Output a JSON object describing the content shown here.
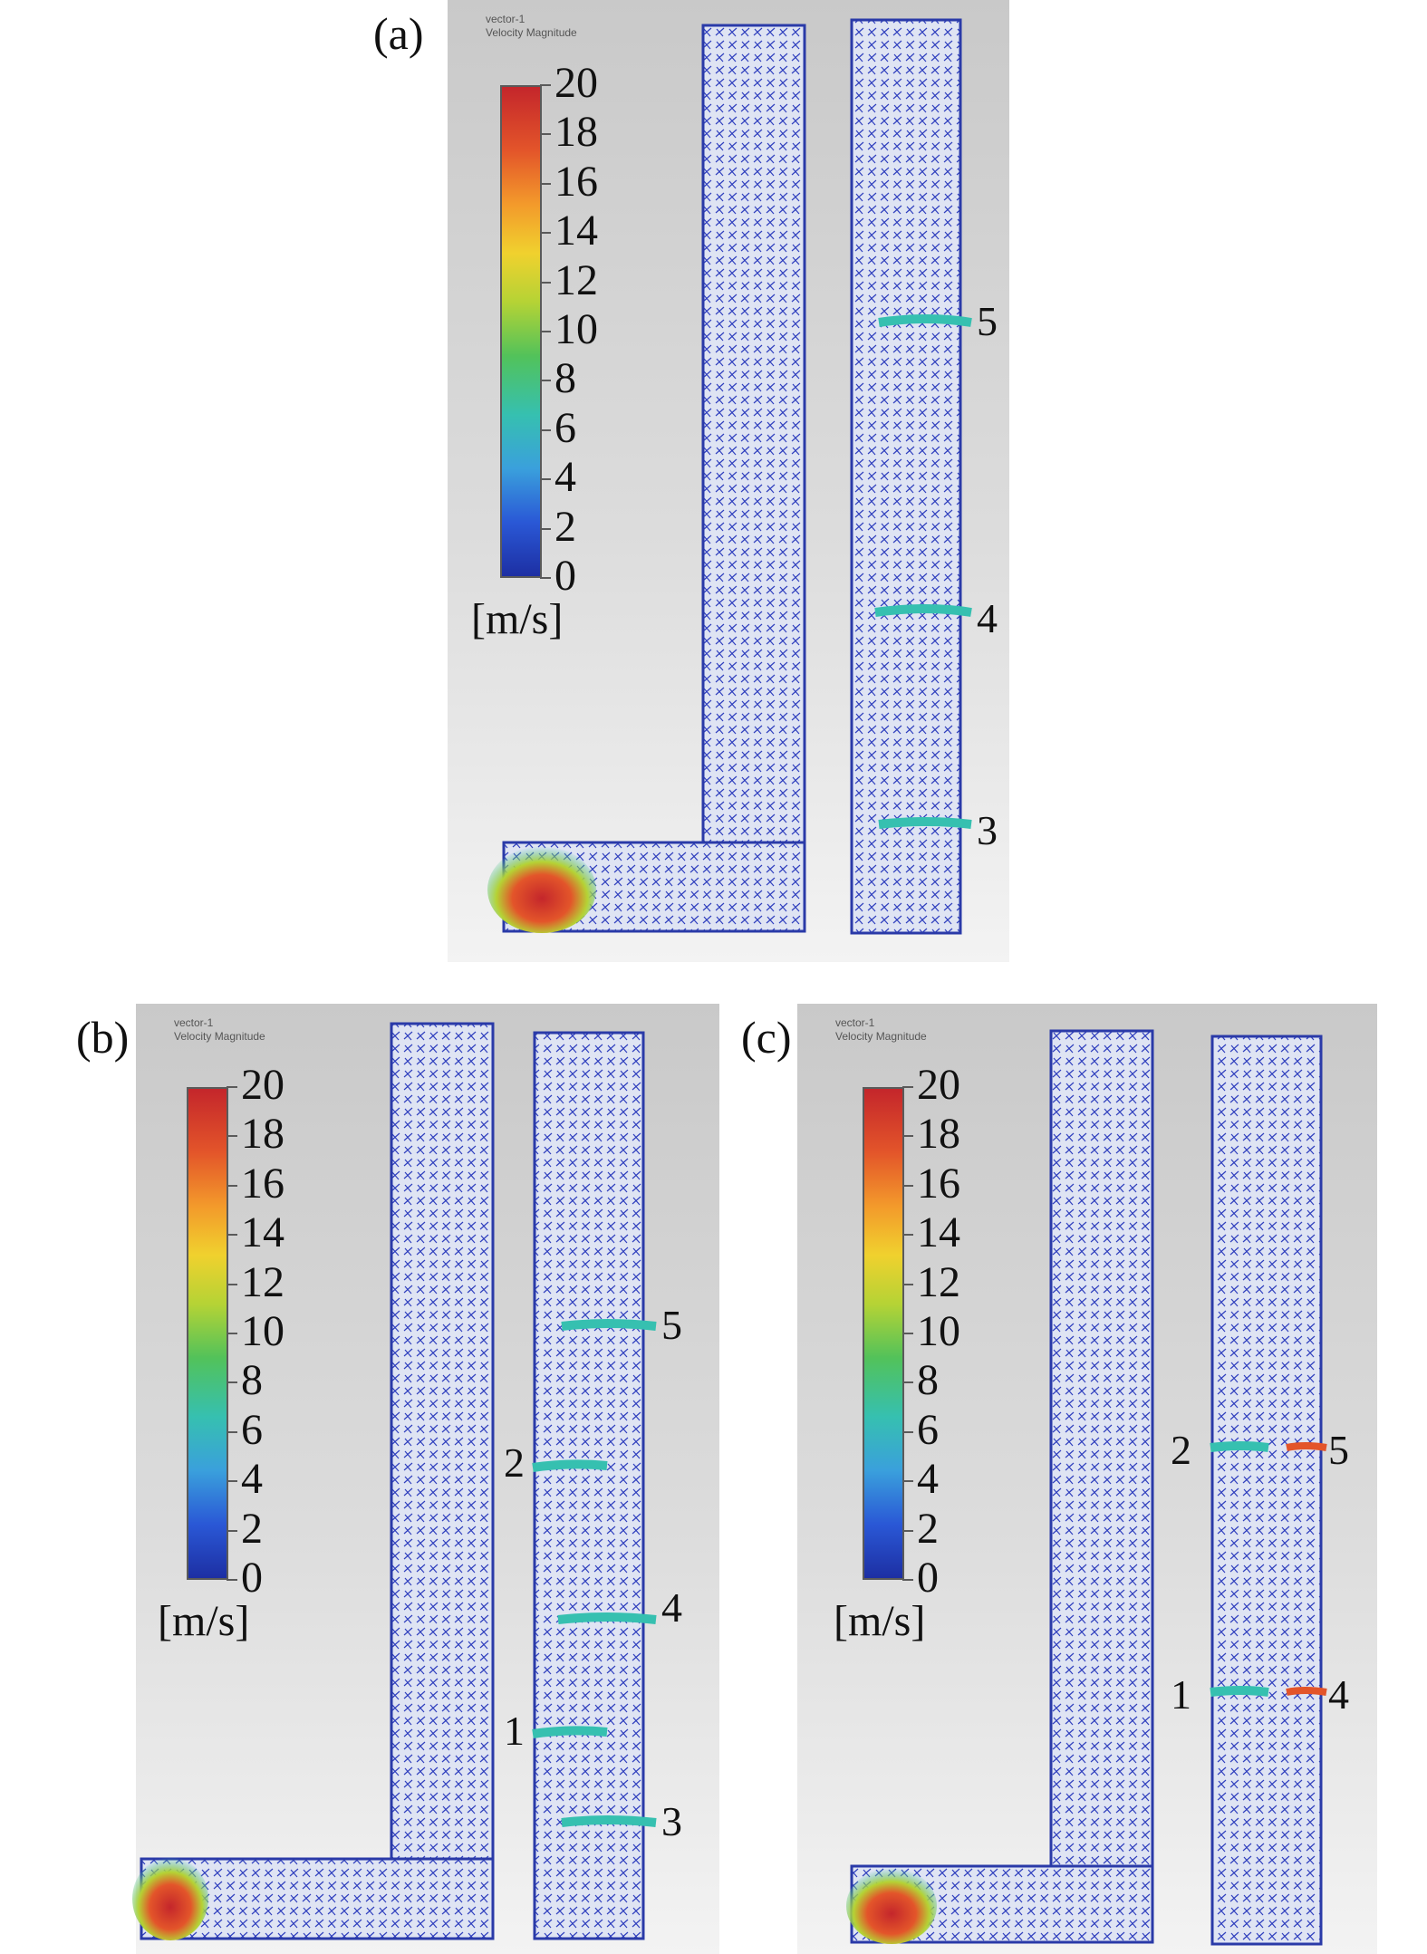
{
  "panels": {
    "a": {
      "label": "(a)",
      "header": {
        "line1": "vector-1",
        "line2": "Velocity Magnitude"
      },
      "colorbar": {
        "ticks": [
          "20",
          "18",
          "16",
          "14",
          "12",
          "10",
          "8",
          "6",
          "4",
          "2",
          "0"
        ],
        "unit": "[m/s]"
      },
      "markers": [
        "5",
        "4",
        "3"
      ]
    },
    "b": {
      "label": "(b)",
      "header": {
        "line1": "vector-1",
        "line2": "Velocity Magnitude"
      },
      "colorbar": {
        "ticks": [
          "20",
          "18",
          "16",
          "14",
          "12",
          "10",
          "8",
          "6",
          "4",
          "2",
          "0"
        ],
        "unit": "[m/s]"
      },
      "markers": [
        "5",
        "2",
        "4",
        "1",
        "3"
      ]
    },
    "c": {
      "label": "(c)",
      "header": {
        "line1": "vector-1",
        "line2": "Velocity Magnitude"
      },
      "colorbar": {
        "ticks": [
          "20",
          "18",
          "16",
          "14",
          "12",
          "10",
          "8",
          "6",
          "4",
          "2",
          "0"
        ],
        "unit": "[m/s]"
      },
      "markers": [
        "2",
        "5",
        "1",
        "4"
      ]
    }
  },
  "colors": {
    "low": "#1d2fa3",
    "mid": "#52c25a",
    "high": "#c4262b"
  }
}
